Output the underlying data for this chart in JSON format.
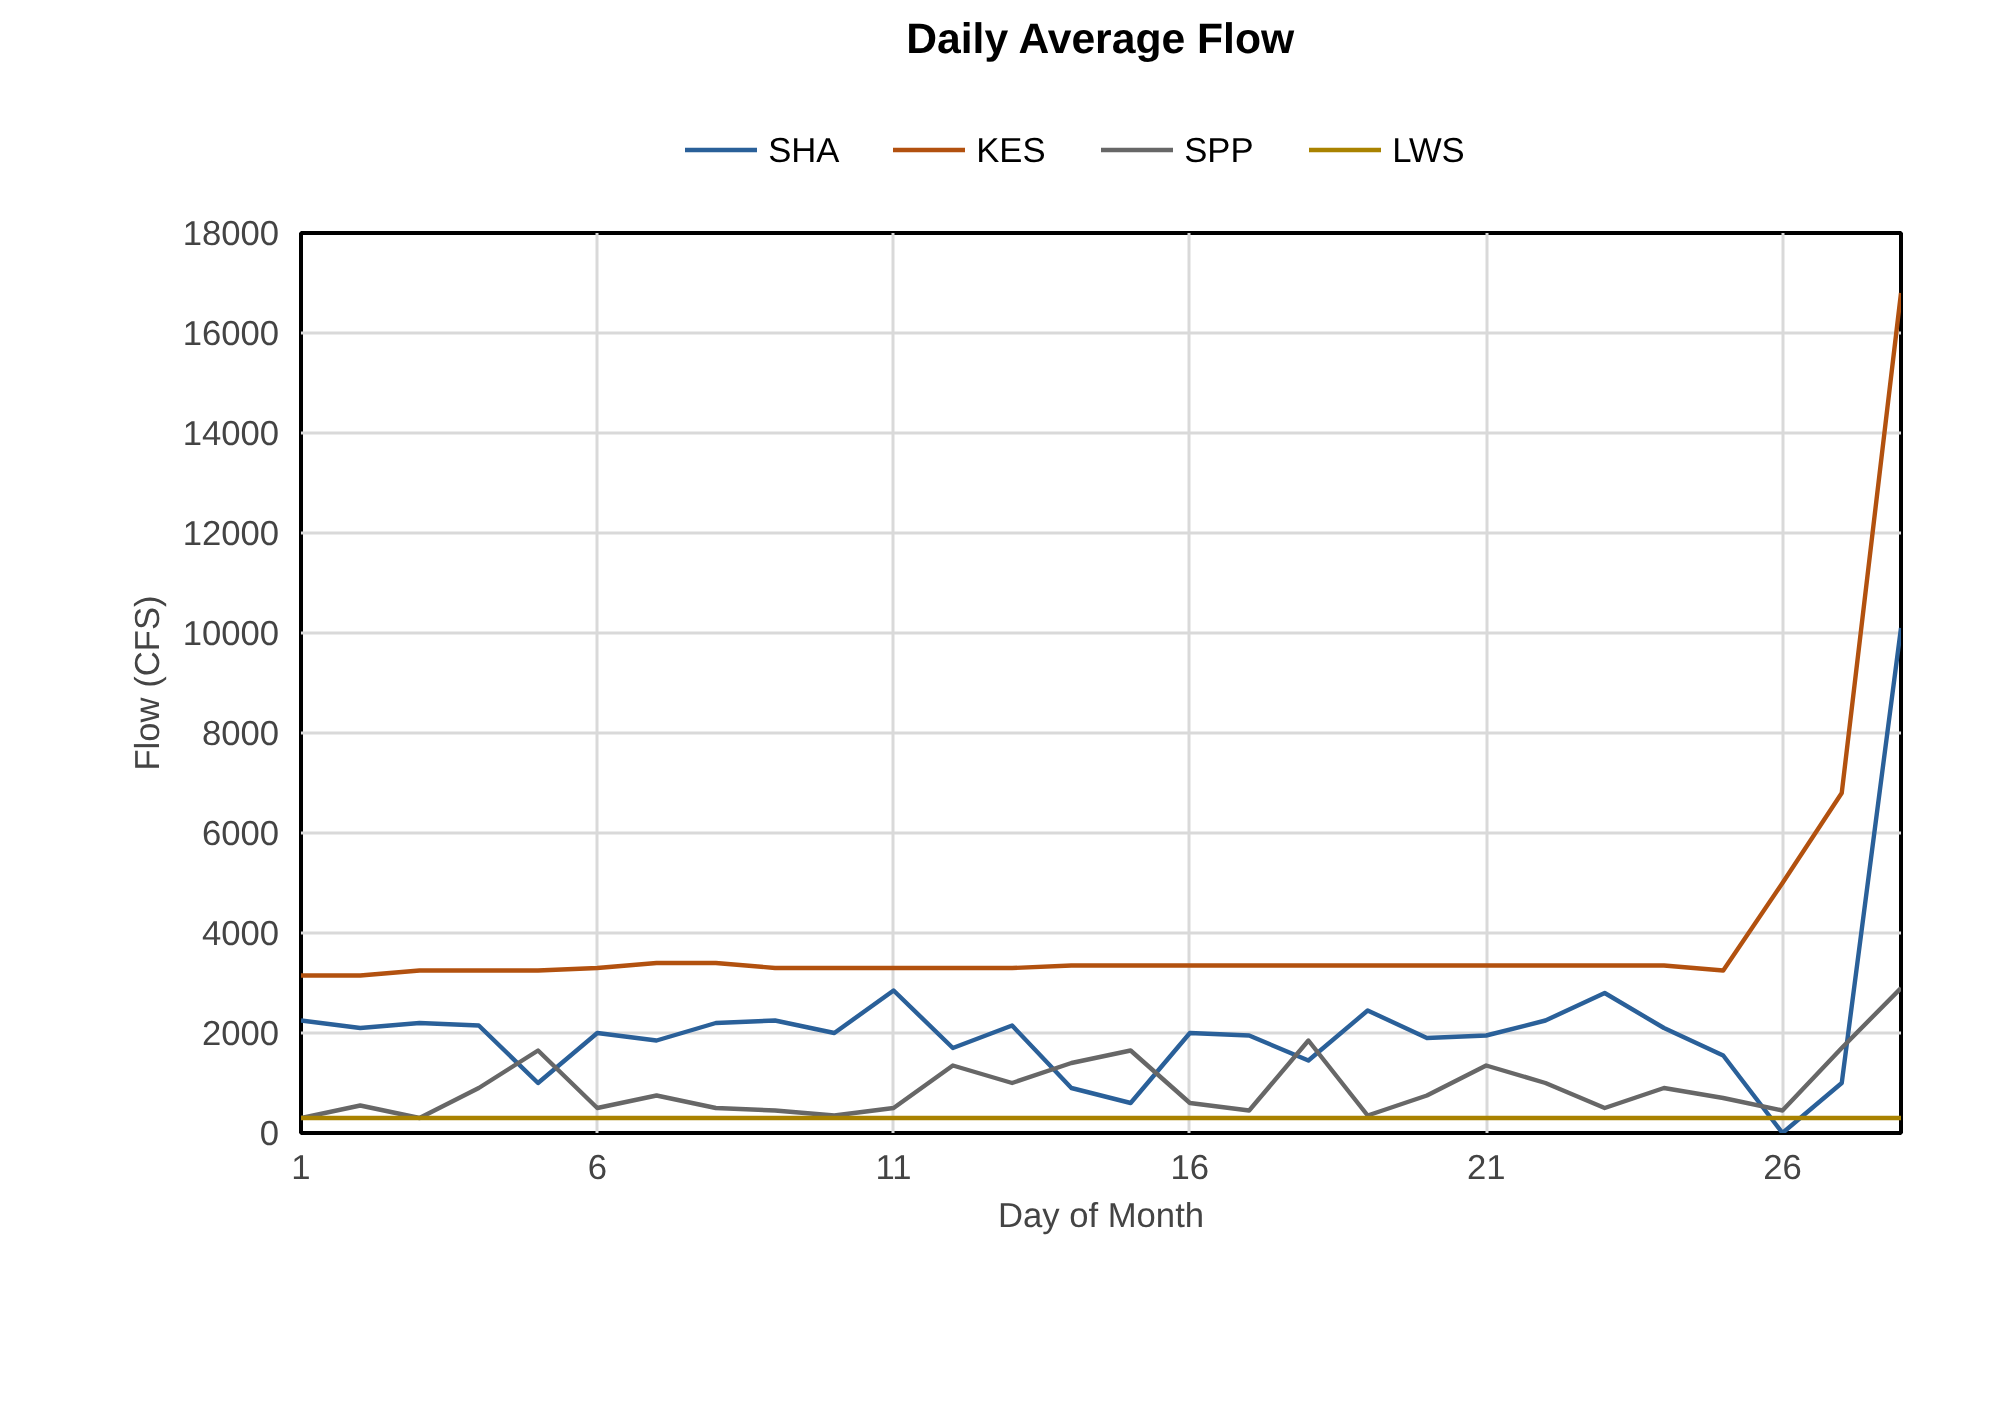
{
  "chart_data": {
    "type": "line",
    "title": "Daily Average Flow",
    "xlabel": "Day of Month",
    "ylabel": "Flow (CFS)",
    "x": [
      1,
      2,
      3,
      4,
      5,
      6,
      7,
      8,
      9,
      10,
      11,
      12,
      13,
      14,
      15,
      16,
      17,
      18,
      19,
      20,
      21,
      22,
      23,
      24,
      25,
      26,
      27,
      28
    ],
    "series": [
      {
        "name": "SHA",
        "color": "#2a6099",
        "values": [
          2250,
          2100,
          2200,
          2150,
          1000,
          2000,
          1850,
          2200,
          2250,
          2000,
          2850,
          1700,
          2150,
          900,
          600,
          2000,
          1950,
          1450,
          2450,
          1900,
          1950,
          2250,
          2800,
          2100,
          1550,
          0,
          1000,
          10100
        ]
      },
      {
        "name": "KES",
        "color": "#b2510f",
        "values": [
          3150,
          3150,
          3250,
          3250,
          3250,
          3300,
          3400,
          3400,
          3300,
          3300,
          3300,
          3300,
          3300,
          3350,
          3350,
          3350,
          3350,
          3350,
          3350,
          3350,
          3350,
          3350,
          3350,
          3350,
          3250,
          5000,
          6800,
          16800
        ]
      },
      {
        "name": "SPP",
        "color": "#676767",
        "values": [
          300,
          550,
          300,
          900,
          1650,
          500,
          750,
          500,
          450,
          350,
          500,
          1350,
          1000,
          1400,
          1650,
          600,
          450,
          1850,
          350,
          750,
          1350,
          1000,
          500,
          900,
          700,
          450,
          1700,
          2900
        ]
      },
      {
        "name": "LWS",
        "color": "#a98200",
        "values": [
          300,
          300,
          300,
          300,
          300,
          300,
          300,
          300,
          300,
          300,
          300,
          300,
          300,
          300,
          300,
          300,
          300,
          300,
          300,
          300,
          300,
          300,
          300,
          300,
          300,
          300,
          300,
          300
        ]
      }
    ],
    "xlim": [
      1,
      28
    ],
    "xticks": [
      1,
      6,
      11,
      16,
      21,
      26
    ],
    "ylim": [
      0,
      18000
    ],
    "yticks": [
      0,
      2000,
      4000,
      6000,
      8000,
      10000,
      12000,
      14000,
      16000,
      18000
    ],
    "grid": true,
    "legend": "top",
    "marker": "none",
    "line_style": "solid"
  }
}
